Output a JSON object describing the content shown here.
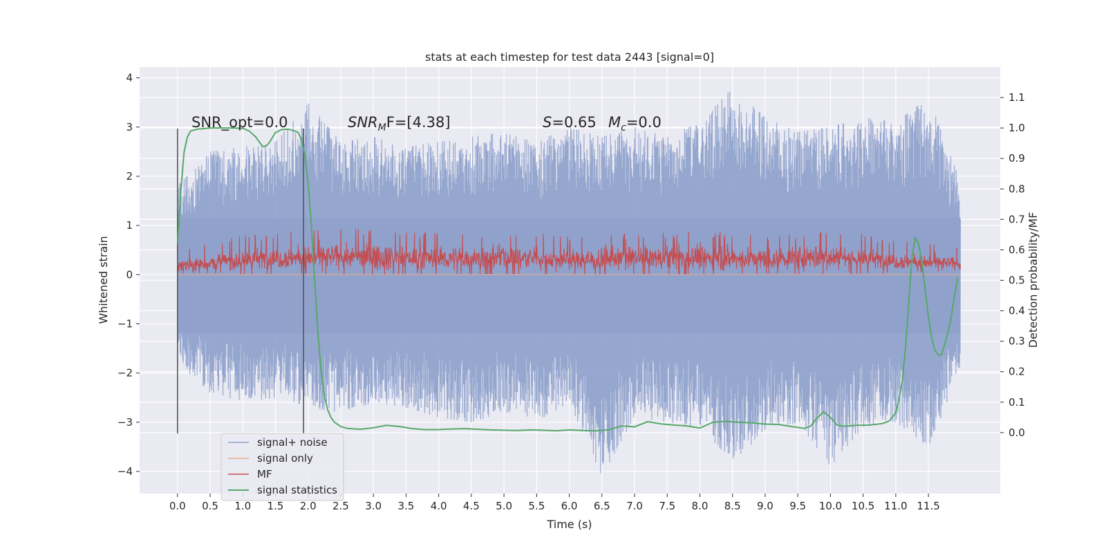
{
  "chart_data": {
    "type": "line",
    "title": "stats at each timestep for test data 2443 [signal=0]",
    "xlabel": "Time (s)",
    "ylabel": "Whitened strain",
    "ylabel_right": "Detection probability/MF",
    "xlim": [
      -0.58,
      12.6
    ],
    "ylim": [
      -4.45,
      4.22
    ],
    "ylim_right": [
      -0.2,
      1.2
    ],
    "x_ticks": [
      "0.0",
      "0.5",
      "1.0",
      "1.5",
      "2.0",
      "2.5",
      "3.0",
      "3.5",
      "4.0",
      "4.5",
      "5.0",
      "5.5",
      "6.0",
      "6.5",
      "7.0",
      "7.5",
      "8.0",
      "8.5",
      "9.0",
      "9.5",
      "10.0",
      "10.5",
      "11.0",
      "11.5"
    ],
    "y_ticks": [
      "4",
      "3",
      "2",
      "1",
      "0",
      "−1",
      "−2",
      "−3",
      "−4"
    ],
    "y_ticks_right": [
      "1.1",
      "1.0",
      "0.9",
      "0.8",
      "0.7",
      "0.6",
      "0.5",
      "0.4",
      "0.3",
      "0.2",
      "0.1",
      "0.0"
    ],
    "grid": true,
    "background": "#eaeaf2",
    "legend_position": "lower-left",
    "annotations": {
      "snr_opt": "SNR_opt=0.0",
      "snr_mf_name": "SNR",
      "snr_mf_sub": "M",
      "snr_mf_tail": "F=[4.38]",
      "s_name": "S",
      "s_value": "=0.65",
      "mc_name": "M",
      "mc_sub": "c",
      "mc_value": "=0.0"
    },
    "vertical_markers": [
      0.0,
      1.93
    ],
    "series": [
      {
        "name": "signal+ noise",
        "color": "#8da0cb",
        "axis": "left",
        "envelope": {
          "x": [
            0.0,
            0.5,
            1.0,
            1.5,
            2.0,
            2.5,
            3.0,
            3.5,
            4.0,
            4.5,
            5.0,
            5.5,
            6.0,
            6.5,
            7.0,
            7.5,
            8.0,
            8.5,
            9.0,
            9.5,
            10.0,
            10.5,
            11.0,
            11.5,
            11.99
          ],
          "upper": [
            1.8,
            2.5,
            2.6,
            2.7,
            3.5,
            2.7,
            2.8,
            2.6,
            2.7,
            2.8,
            2.9,
            2.7,
            3.0,
            2.8,
            3.0,
            2.8,
            3.1,
            3.8,
            3.2,
            2.9,
            3.0,
            3.2,
            3.1,
            3.6,
            1.9
          ],
          "lower": [
            -1.8,
            -2.4,
            -2.6,
            -2.5,
            -2.7,
            -2.8,
            -2.6,
            -2.7,
            -2.9,
            -3.0,
            -2.8,
            -3.0,
            -2.6,
            -4.1,
            -2.9,
            -3.0,
            -3.1,
            -3.8,
            -3.2,
            -3.0,
            -3.9,
            -3.1,
            -3.0,
            -3.5,
            -2.0
          ]
        }
      },
      {
        "name": "signal only",
        "color": "#e8a98a",
        "axis": "left",
        "x": [
          0.0,
          11.99
        ],
        "y": [
          0.0,
          0.0
        ]
      },
      {
        "name": "MF",
        "color": "#c44e52",
        "axis": "left",
        "envelope": {
          "x": [
            0.0,
            1.0,
            2.0,
            3.0,
            4.0,
            5.0,
            6.0,
            7.0,
            8.0,
            9.0,
            10.0,
            11.0,
            11.99
          ],
          "upper": [
            0.5,
            0.8,
            0.9,
            0.95,
            0.85,
            0.9,
            0.8,
            0.85,
            0.9,
            0.8,
            0.95,
            0.7,
            0.55
          ],
          "lower": [
            0.05,
            0.0,
            0.02,
            -0.02,
            0.0,
            0.02,
            0.0,
            0.01,
            0.0,
            0.02,
            0.0,
            0.05,
            0.1
          ]
        }
      },
      {
        "name": "signal statistics",
        "color": "#55a868",
        "axis": "right",
        "x": [
          0.0,
          0.05,
          0.1,
          0.15,
          0.2,
          0.3,
          0.5,
          0.8,
          1.0,
          1.1,
          1.2,
          1.3,
          1.35,
          1.4,
          1.5,
          1.6,
          1.7,
          1.8,
          1.85,
          1.9,
          1.95,
          2.0,
          2.05,
          2.1,
          2.15,
          2.2,
          2.25,
          2.3,
          2.35,
          2.4,
          2.5,
          2.6,
          2.8,
          3.0,
          3.2,
          3.4,
          3.6,
          3.8,
          4.0,
          4.2,
          4.4,
          4.6,
          4.8,
          5.0,
          5.2,
          5.4,
          5.6,
          5.8,
          6.0,
          6.2,
          6.4,
          6.6,
          6.8,
          7.0,
          7.2,
          7.4,
          7.6,
          7.8,
          8.0,
          8.2,
          8.4,
          8.6,
          8.8,
          9.0,
          9.2,
          9.4,
          9.6,
          9.7,
          9.8,
          9.9,
          10.0,
          10.1,
          10.2,
          10.4,
          10.6,
          10.8,
          10.9,
          11.0,
          11.05,
          11.1,
          11.15,
          11.2,
          11.25,
          11.3,
          11.35,
          11.4,
          11.45,
          11.5,
          11.55,
          11.6,
          11.65,
          11.7,
          11.75,
          11.8,
          11.85,
          11.9,
          11.95
        ],
        "y": [
          0.62,
          0.79,
          0.92,
          0.97,
          0.99,
          0.996,
          1.0,
          1.0,
          0.999,
          0.99,
          0.97,
          0.94,
          0.94,
          0.95,
          0.985,
          0.995,
          0.996,
          0.99,
          0.985,
          0.96,
          0.91,
          0.82,
          0.68,
          0.5,
          0.33,
          0.2,
          0.12,
          0.075,
          0.05,
          0.035,
          0.02,
          0.014,
          0.011,
          0.016,
          0.024,
          0.02,
          0.013,
          0.01,
          0.01,
          0.012,
          0.013,
          0.011,
          0.009,
          0.008,
          0.007,
          0.009,
          0.008,
          0.006,
          0.009,
          0.007,
          0.006,
          0.009,
          0.022,
          0.019,
          0.036,
          0.029,
          0.025,
          0.022,
          0.015,
          0.034,
          0.037,
          0.034,
          0.032,
          0.028,
          0.027,
          0.02,
          0.014,
          0.022,
          0.05,
          0.068,
          0.05,
          0.025,
          0.021,
          0.024,
          0.025,
          0.03,
          0.038,
          0.065,
          0.11,
          0.17,
          0.28,
          0.43,
          0.58,
          0.64,
          0.62,
          0.56,
          0.47,
          0.38,
          0.31,
          0.27,
          0.255,
          0.255,
          0.29,
          0.33,
          0.38,
          0.45,
          0.51
        ]
      }
    ]
  }
}
